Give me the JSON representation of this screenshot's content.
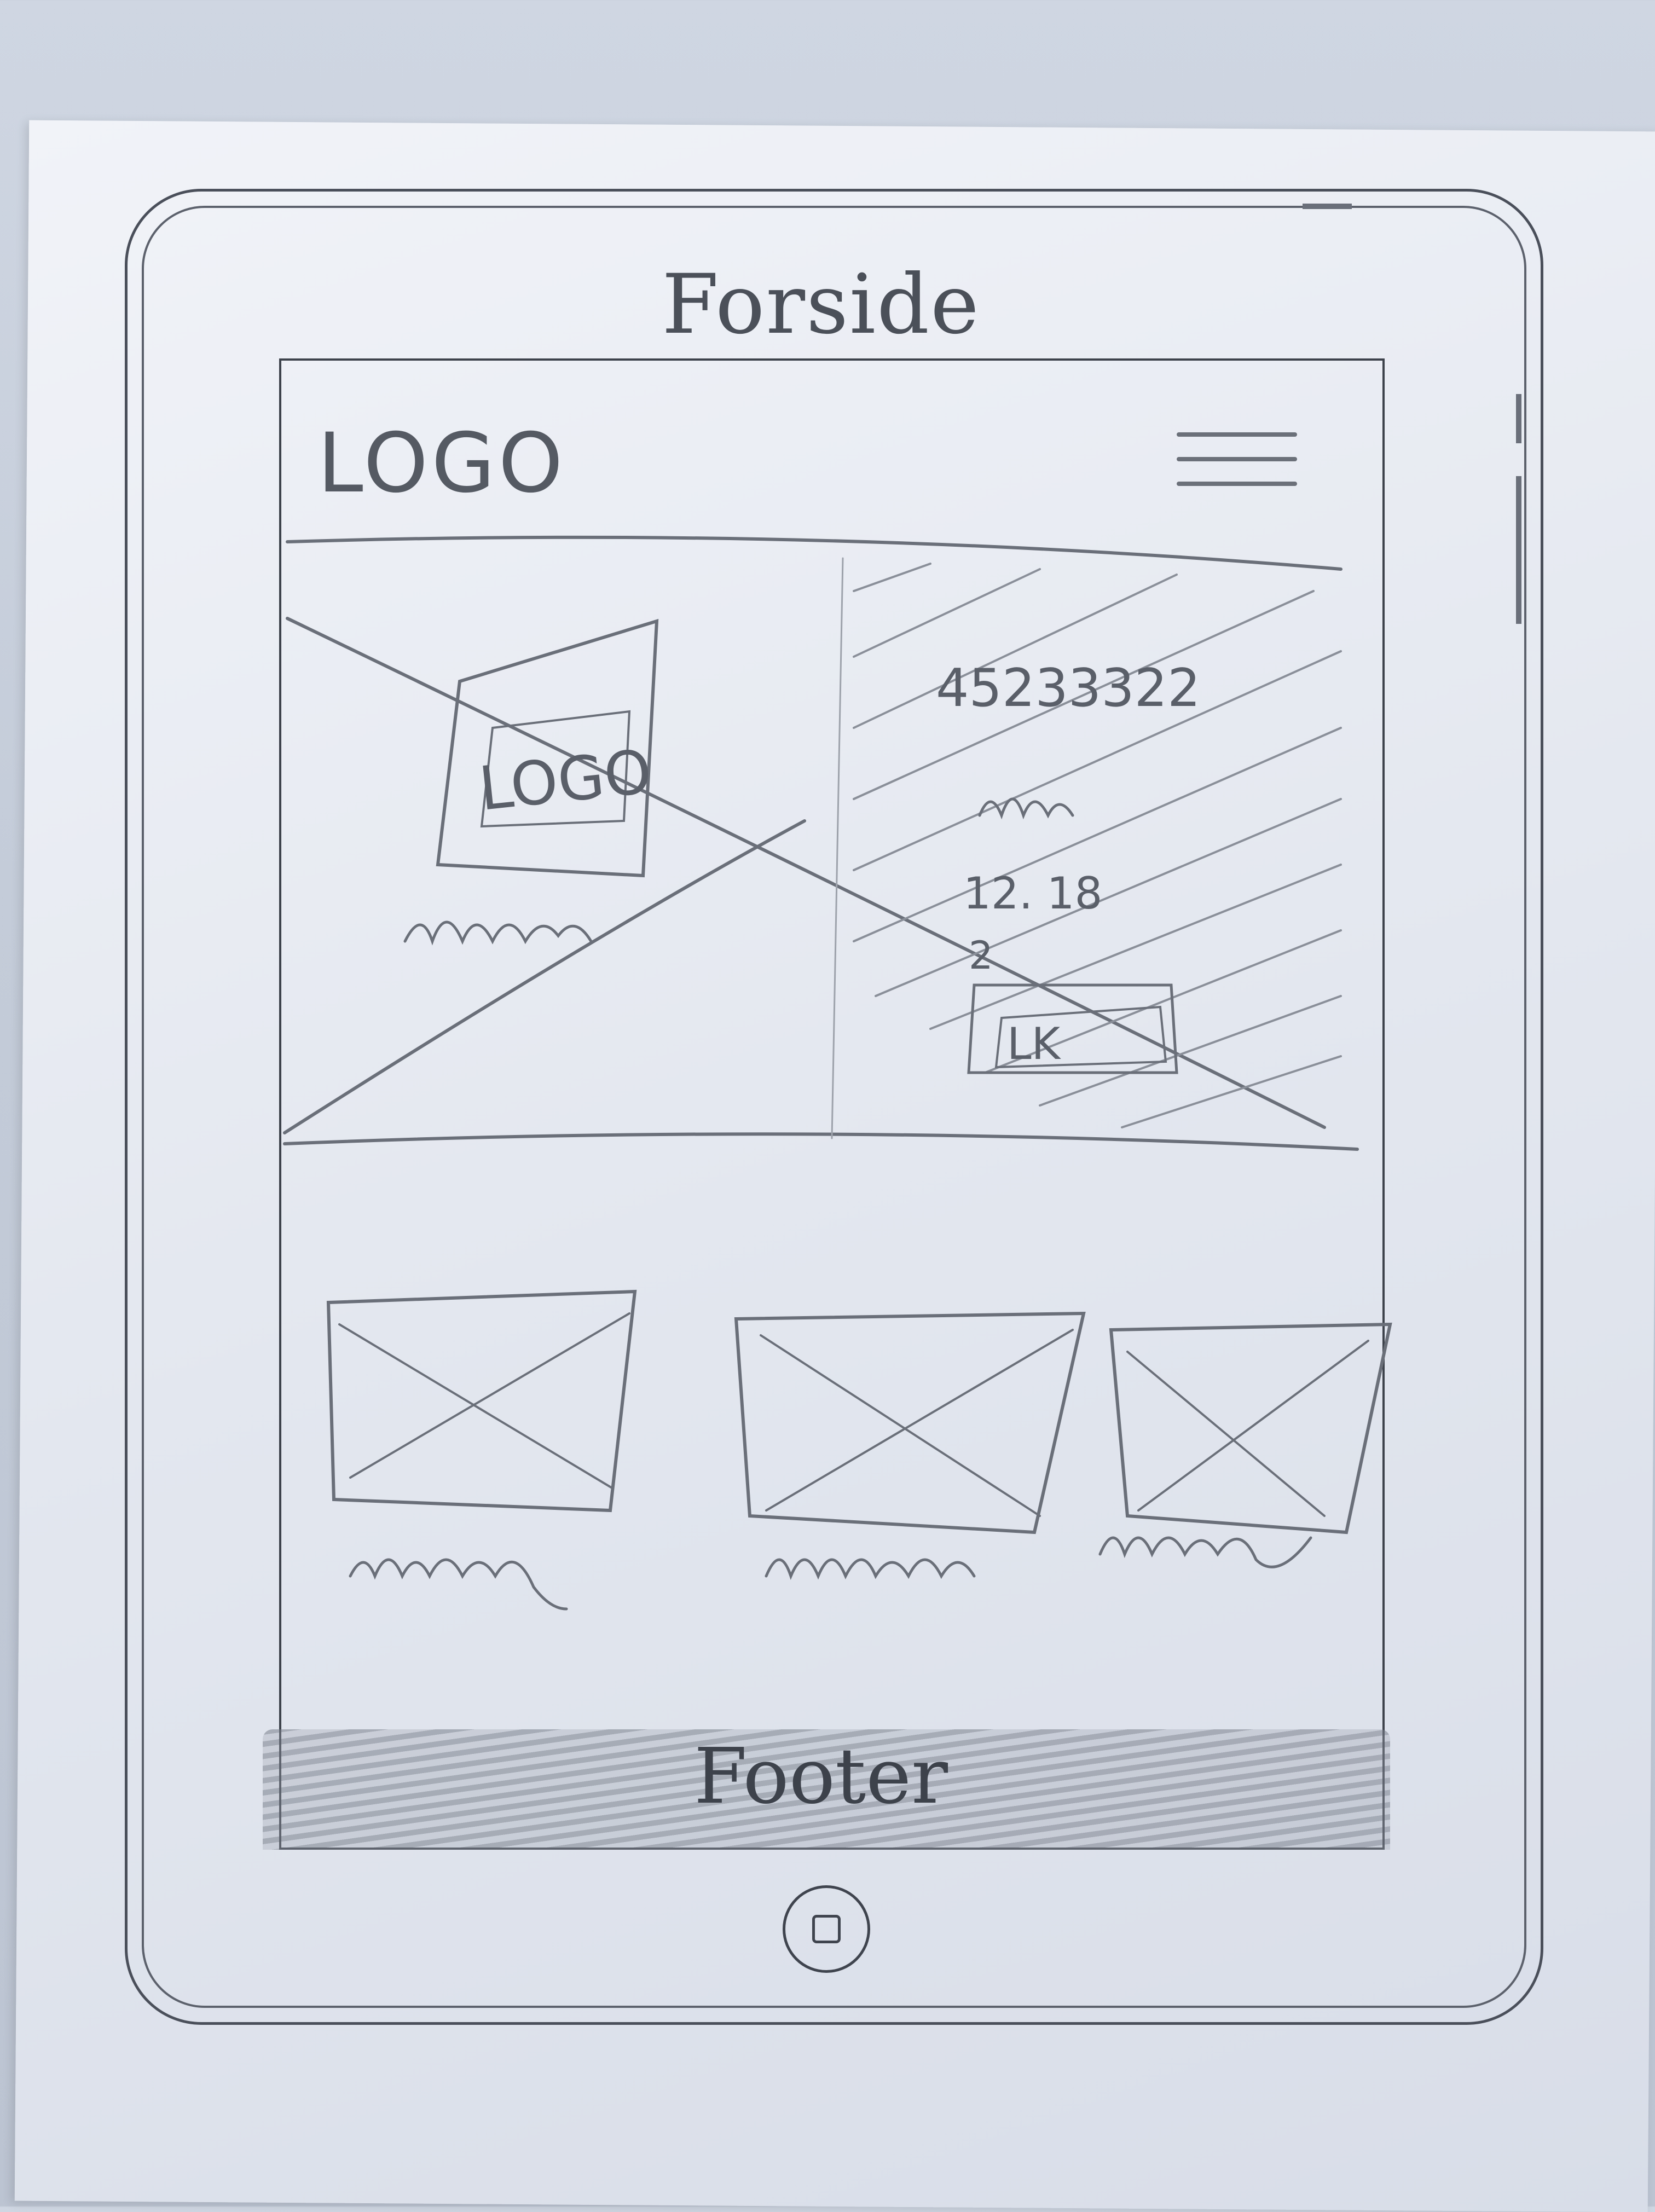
{
  "page": {
    "title": "Forside"
  },
  "header": {
    "logo_label": "LOGO",
    "menu_icon": "hamburger-menu-icon"
  },
  "hero": {
    "image_placeholder_icon": "image-placeholder-icon",
    "image_logo_label": "LOGO",
    "info_number": "45233322",
    "info_times": "12. 18",
    "info_extra": "2",
    "button_label": "LK"
  },
  "cards": [
    {
      "icon": "image-placeholder-icon"
    },
    {
      "icon": "image-placeholder-icon"
    },
    {
      "icon": "image-placeholder-icon"
    }
  ],
  "footer": {
    "label": "Footer"
  },
  "device": {
    "home_button_icon": "home-button-icon"
  },
  "colors": {
    "pencil": "#5a5f69",
    "paper": "#e6e9f0",
    "background": "#c4ccd9"
  }
}
